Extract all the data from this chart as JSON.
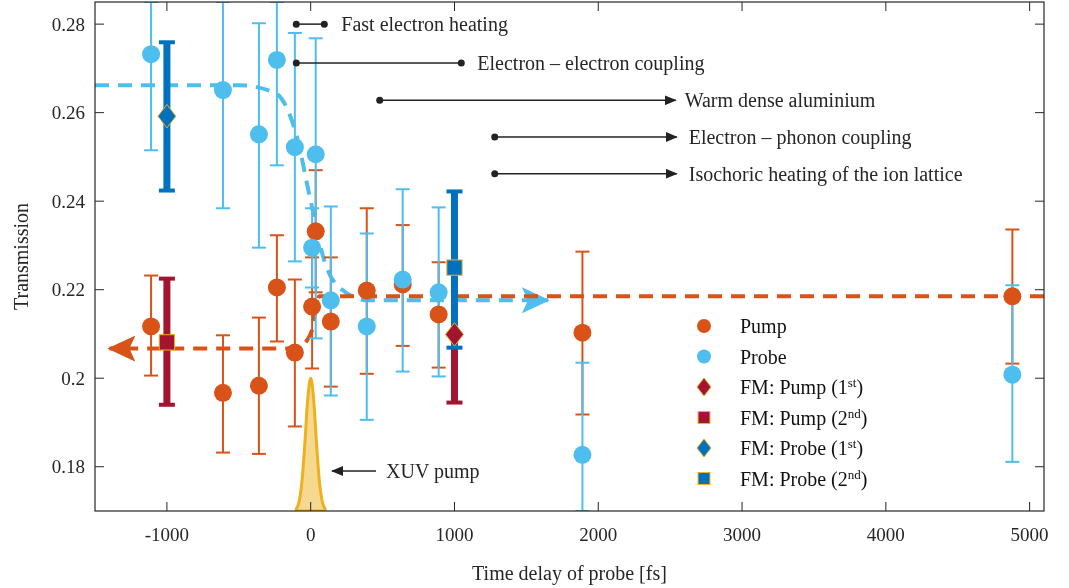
{
  "chart_data": {
    "type": "scatter",
    "xlabel": "Time delay of probe [fs]",
    "ylabel": "Transmission",
    "xlim": [
      -1500,
      5100
    ],
    "ylim": [
      0.17,
      0.285
    ],
    "xticks": [
      -1000,
      0,
      1000,
      2000,
      3000,
      4000,
      5000
    ],
    "yticks": [
      0.18,
      0.2,
      0.22,
      0.24,
      0.26,
      0.28
    ],
    "grid": false,
    "legend": "bottom right",
    "series": [
      {
        "type": "area",
        "color": "#edb120",
        "x": [
          -100,
          -80,
          -60,
          -40,
          -20,
          0,
          20,
          40,
          60,
          80,
          100
        ],
        "values": [
          0.1705,
          0.1722,
          0.1769,
          0.1856,
          0.1955,
          0.2,
          0.1955,
          0.1856,
          0.1769,
          0.1722,
          0.1705
        ]
      },
      {
        "type": "line",
        "line_style": "dashed",
        "color": "#4dbeee",
        "x": [
          -1500,
          -500,
          -250,
          -100,
          0,
          100,
          200,
          400,
          1650
        ],
        "values": [
          0.2662,
          0.2662,
          0.2645,
          0.255,
          0.24,
          0.226,
          0.2205,
          0.2176,
          0.2176
        ]
      },
      {
        "type": "line",
        "line_style": "dashed",
        "color": "#d95319",
        "x": [
          5100,
          60,
          0,
          -100,
          -1400
        ],
        "values": [
          0.2185,
          0.2185,
          0.21,
          0.2067,
          0.2067
        ]
      },
      {
        "name": "Pump",
        "marker": "circle",
        "color": "#d95319",
        "x": [
          -1110,
          -610,
          -360,
          -235,
          -110,
          10,
          35,
          140,
          390,
          640,
          890,
          1890,
          4880
        ],
        "values": [
          0.2117,
          0.1967,
          0.1983,
          0.2205,
          0.2058,
          0.2162,
          0.2332,
          0.2128,
          0.2198,
          0.2212,
          0.2144,
          0.2103,
          0.2185
        ],
        "errors": [
          [
            0.2006,
            0.2232
          ],
          [
            0.1832,
            0.2097
          ],
          [
            0.1829,
            0.2137
          ],
          [
            0.2083,
            0.2323
          ],
          [
            0.1891,
            0.2223
          ],
          [
            0.2022,
            0.2273
          ],
          [
            0.2194,
            0.247
          ],
          [
            0.1981,
            0.2273
          ],
          [
            0.201,
            0.2384
          ],
          [
            0.2073,
            0.2346
          ],
          [
            0.2024,
            0.2262
          ],
          [
            0.1918,
            0.2286
          ],
          [
            0.2033,
            0.2336
          ]
        ]
      },
      {
        "name": "Probe",
        "marker": "circle",
        "color": "#4dbeee",
        "x": [
          -1110,
          -610,
          -360,
          -235,
          -110,
          10,
          35,
          140,
          390,
          640,
          890,
          1890,
          4880
        ],
        "values": [
          0.2732,
          0.2651,
          0.2551,
          0.2719,
          0.2522,
          0.2295,
          0.2506,
          0.2176,
          0.2117,
          0.2223,
          0.2194,
          0.1827,
          0.2008
        ],
        "errors": [
          [
            0.2515,
            0.285
          ],
          [
            0.2384,
            0.285
          ],
          [
            0.2295,
            0.2802
          ],
          [
            0.2481,
            0.285
          ],
          [
            0.2264,
            0.278
          ],
          [
            0.2205,
            0.2384
          ],
          [
            0.209,
            0.2768
          ],
          [
            0.1961,
            0.2388
          ],
          [
            0.1906,
            0.2327
          ],
          [
            0.2015,
            0.2427
          ],
          [
            0.2004,
            0.2386
          ],
          [
            0.17,
            0.2035
          ],
          [
            0.1811,
            0.221
          ]
        ]
      },
      {
        "name": "FM: Pump (1$^{st}$)",
        "marker": "diamond",
        "color": "#a2142f",
        "x": [
          1000
        ],
        "values": [
          0.2099
        ],
        "errors": [
          [
            0.1945,
            0.2099
          ]
        ]
      },
      {
        "name": "FM: Pump (2$^{nd}$)",
        "marker": "square",
        "color": "#a2142f",
        "x": [
          -1000
        ],
        "values": [
          0.2081
        ],
        "errors": [
          [
            0.194,
            0.2225
          ]
        ]
      },
      {
        "name": "FM: Probe (1$^{st}$)",
        "marker": "diamond",
        "color": "#0072bd",
        "x": [
          -1000
        ],
        "values": [
          0.2592
        ],
        "errors": [
          [
            0.2424,
            0.2759
          ]
        ]
      },
      {
        "name": "FM: Probe (2$^{nd}$)",
        "marker": "square",
        "color": "#0072bd",
        "x": [
          1000
        ],
        "values": [
          0.225
        ],
        "errors": [
          [
            0.2069,
            0.2422
          ]
        ]
      }
    ],
    "annotations": [
      {
        "text": "Fast electron heating",
        "x": -100,
        "y": 0.28
      },
      {
        "text": "Electron – electron coupling",
        "x": -100,
        "y": 0.2712
      },
      {
        "text": "Warm dense aluminium",
        "x": 480,
        "y": 0.2628
      },
      {
        "text": "Electron – phonon coupling",
        "x": 1280,
        "y": 0.2545
      },
      {
        "text": "Isochoric heating of the ion lattice",
        "x": 1280,
        "y": 0.2462
      },
      "XUV pump"
    ]
  }
}
